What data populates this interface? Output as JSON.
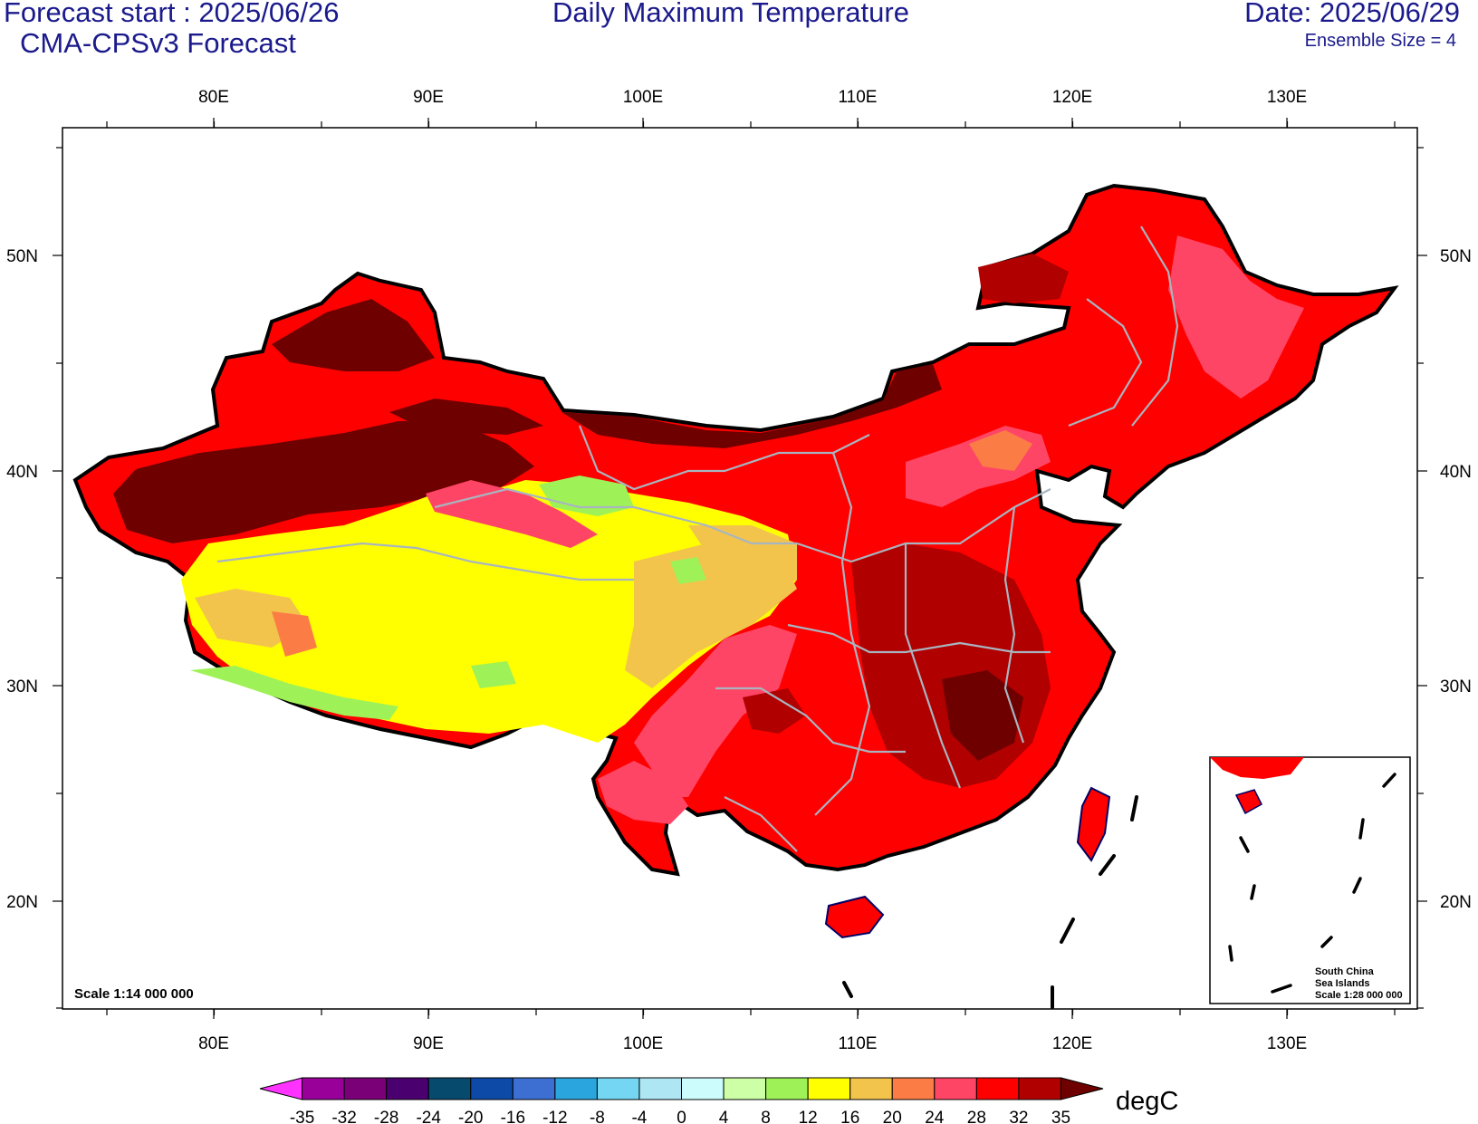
{
  "header": {
    "forecast_start": "Forecast start : 2025/06/26",
    "model": "CMA-CPSv3 Forecast",
    "title": "Daily Maximum Temperature",
    "date": "Date: 2025/06/29",
    "ensemble": "Ensemble Size = 4"
  },
  "axes": {
    "lon_labels": [
      "80E",
      "90E",
      "100E",
      "110E",
      "120E",
      "130E"
    ],
    "lat_labels": [
      "50N",
      "40N",
      "30N",
      "20N"
    ]
  },
  "map": {
    "scale_text": "Scale 1:14 000 000",
    "inset": {
      "line1": "South China",
      "line2": "Sea Islands",
      "line3": "Scale 1:28 000 000"
    }
  },
  "colorbar": {
    "unit": "degC",
    "levels": [
      "-35",
      "-32",
      "-28",
      "-24",
      "-20",
      "-16",
      "-12",
      "-8",
      "-4",
      "0",
      "4",
      "8",
      "12",
      "16",
      "20",
      "24",
      "28",
      "32",
      "35"
    ],
    "colors": [
      "#ff33ff",
      "#990099",
      "#7a0077",
      "#4b0070",
      "#064a6e",
      "#0d4aa8",
      "#3c6fd1",
      "#2aa5dd",
      "#74d6f2",
      "#aee6f4",
      "#ccfcfc",
      "#cdffa6",
      "#9ef257",
      "#ffff00",
      "#f2c44c",
      "#fb7d45",
      "#ff4566",
      "#ff0000",
      "#b00000",
      "#6e0000"
    ]
  }
}
